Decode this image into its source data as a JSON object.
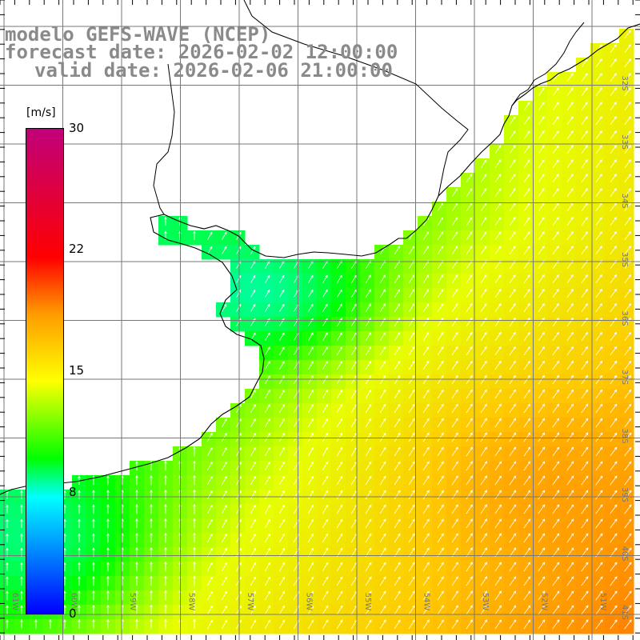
{
  "titles": {
    "line1": "modelo GEFS-WAVE (NCEP)",
    "line2": "forecast date: 2026-02-02 12:00:00",
    "line3": "valid date: 2026-02-06 21:00:00"
  },
  "colorbar": {
    "unit": "[m/s]",
    "ticks": [
      "30",
      "22",
      "15",
      "8",
      "0"
    ],
    "tick_values": [
      30,
      22,
      15,
      8,
      0
    ],
    "colors": [
      "#0000ff",
      "#00ffff",
      "#00ff00",
      "#ffff00",
      "#ff9a00",
      "#ff0000",
      "#c0007a"
    ]
  },
  "lat_labels": [
    "32S",
    "33S",
    "34S",
    "35S",
    "36S",
    "37S",
    "38S",
    "39S",
    "40S",
    "41S"
  ],
  "lon_labels": [
    "61W",
    "60W",
    "59W",
    "58W",
    "57W",
    "56W",
    "55W",
    "54W",
    "53W",
    "52W",
    "51W"
  ]
}
